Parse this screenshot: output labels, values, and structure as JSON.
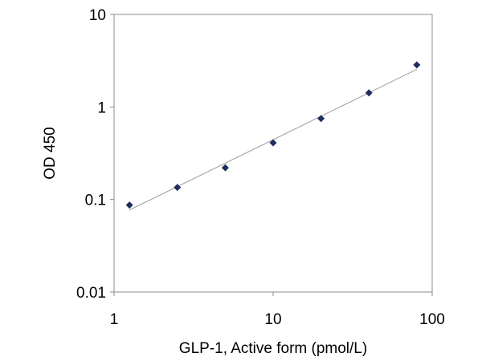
{
  "chart_data": {
    "type": "scatter",
    "xlabel": "GLP-1, Active form (pmol/L)",
    "ylabel": "OD 450",
    "x_scale": "log",
    "y_scale": "log",
    "xlim": [
      1,
      100
    ],
    "ylim": [
      0.01,
      10
    ],
    "x_ticks": [
      {
        "value": 1,
        "label": "1"
      },
      {
        "value": 10,
        "label": "10"
      },
      {
        "value": 100,
        "label": "100"
      }
    ],
    "y_ticks": [
      {
        "value": 0.01,
        "label": "0.01"
      },
      {
        "value": 0.1,
        "label": "0.1"
      },
      {
        "value": 1,
        "label": "1"
      },
      {
        "value": 10,
        "label": "10"
      }
    ],
    "grid": false,
    "series": [
      {
        "marker": "diamond",
        "color": "#1f2d5c",
        "points": [
          {
            "x": 1.25,
            "y": 0.087
          },
          {
            "x": 2.5,
            "y": 0.135
          },
          {
            "x": 5,
            "y": 0.22
          },
          {
            "x": 10,
            "y": 0.41
          },
          {
            "x": 20,
            "y": 0.75
          },
          {
            "x": 40,
            "y": 1.42
          },
          {
            "x": 80,
            "y": 2.85
          }
        ]
      }
    ],
    "trendline": {
      "type": "power",
      "color": "#9a9a9a",
      "points": [
        {
          "x": 1.25,
          "y": 0.077
        },
        {
          "x": 80,
          "y": 2.55
        }
      ]
    }
  }
}
